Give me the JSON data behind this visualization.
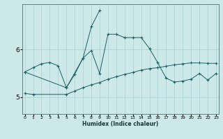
{
  "xlabel": "Humidex (Indice chaleur)",
  "bg_color": "#cce8e8",
  "line_color": "#1a6060",
  "grid_color": "#aacfcf",
  "x_ticks": [
    0,
    1,
    2,
    3,
    4,
    5,
    6,
    7,
    8,
    9,
    10,
    11,
    12,
    13,
    14,
    15,
    16,
    17,
    18,
    19,
    20,
    21,
    22,
    23
  ],
  "y_ticks": [
    5,
    6
  ],
  "ylim": [
    4.65,
    6.95
  ],
  "xlim": [
    -0.3,
    23.3
  ],
  "series1_x": [
    0,
    1,
    2,
    3,
    4,
    5,
    6,
    7,
    8,
    9,
    10,
    11,
    12,
    13,
    14,
    15,
    16,
    17,
    18,
    19,
    20,
    21,
    22,
    23
  ],
  "series1_y": [
    5.53,
    5.62,
    5.7,
    5.73,
    5.66,
    5.2,
    5.48,
    5.82,
    5.98,
    5.5,
    6.32,
    6.32,
    6.25,
    6.25,
    6.25,
    6.02,
    5.72,
    5.4,
    5.32,
    5.34,
    5.38,
    5.5,
    5.36,
    5.5
  ],
  "series2_x": [
    0,
    5,
    7,
    8,
    9
  ],
  "series2_y": [
    5.53,
    5.2,
    5.82,
    6.48,
    6.82
  ],
  "series3_x": [
    0,
    1,
    5,
    6,
    7,
    8,
    9,
    10,
    11,
    12,
    13,
    14,
    15,
    16,
    17,
    18,
    19,
    20,
    21,
    22,
    23
  ],
  "series3_y": [
    5.08,
    5.06,
    5.06,
    5.13,
    5.2,
    5.26,
    5.31,
    5.38,
    5.43,
    5.48,
    5.52,
    5.57,
    5.6,
    5.62,
    5.65,
    5.68,
    5.7,
    5.72,
    5.72,
    5.71,
    5.71
  ]
}
